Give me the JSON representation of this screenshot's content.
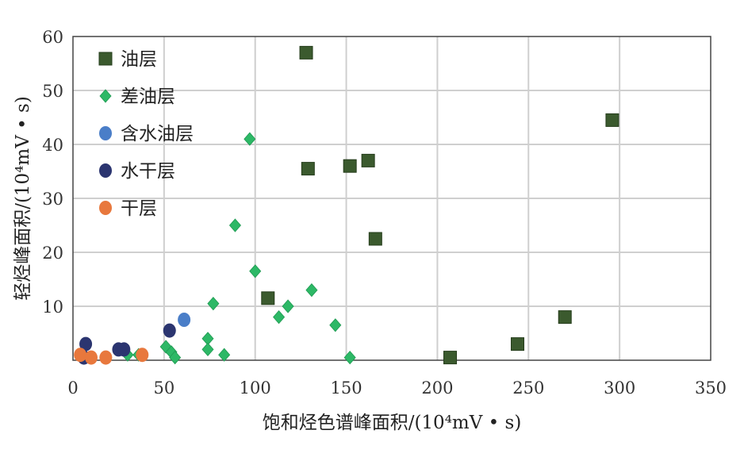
{
  "chart_data": {
    "type": "scatter",
    "xlabel": "饱和烃色谱峰面积/(10⁴mV • s)",
    "ylabel": "轻烃峰面积/(10⁴mV • s)",
    "xlim": [
      0,
      350
    ],
    "ylim": [
      0,
      60
    ],
    "x_ticks": [
      "0",
      "50",
      "100",
      "150",
      "200",
      "250",
      "300",
      "350"
    ],
    "y_ticks": [
      "10",
      "20",
      "30",
      "40",
      "50",
      "60"
    ],
    "grid": true,
    "legend_position": "top-left",
    "series": [
      {
        "name": "油层",
        "marker": "square",
        "color": "#3b5a2e",
        "points": [
          [
            128,
            57
          ],
          [
            129,
            35.5
          ],
          [
            152,
            36
          ],
          [
            162,
            37
          ],
          [
            166,
            22.5
          ],
          [
            107,
            11.5
          ],
          [
            207,
            0.5
          ],
          [
            244,
            3
          ],
          [
            270,
            8
          ],
          [
            296,
            44.5
          ]
        ]
      },
      {
        "name": "差油层",
        "marker": "diamond",
        "color": "#2db866",
        "points": [
          [
            97,
            41
          ],
          [
            89,
            25
          ],
          [
            100,
            16.5
          ],
          [
            77,
            10.5
          ],
          [
            118,
            10
          ],
          [
            131,
            13
          ],
          [
            113,
            8
          ],
          [
            144,
            6.5
          ],
          [
            74,
            4
          ],
          [
            51,
            2.5
          ],
          [
            54,
            1.5
          ],
          [
            56,
            0.5
          ],
          [
            74,
            2
          ],
          [
            83,
            1
          ],
          [
            30,
            1
          ],
          [
            36,
            1
          ],
          [
            152,
            0.5
          ]
        ]
      },
      {
        "name": "含水油层",
        "marker": "circle",
        "color": "#4a7ec8",
        "points": [
          [
            61,
            7.5
          ]
        ]
      },
      {
        "name": "水干层",
        "marker": "circle",
        "color": "#2b3570",
        "points": [
          [
            53,
            5.5
          ],
          [
            7,
            3
          ],
          [
            25,
            2
          ],
          [
            28,
            2
          ],
          [
            6,
            0.5
          ]
        ]
      },
      {
        "name": "干层",
        "marker": "circle",
        "color": "#e8783d",
        "points": [
          [
            4,
            1
          ],
          [
            10,
            0.5
          ],
          [
            18,
            0.5
          ],
          [
            38,
            1
          ]
        ]
      }
    ]
  }
}
